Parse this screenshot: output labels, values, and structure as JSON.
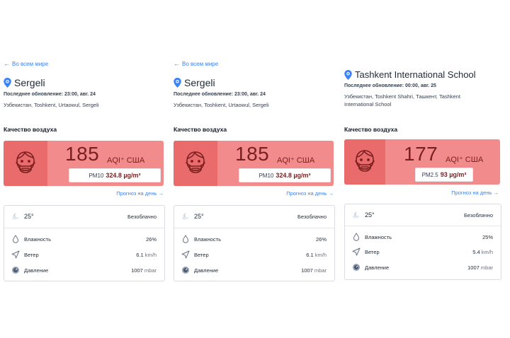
{
  "panels": [
    {
      "back_label": "Во всем мире",
      "location": "Sergeli",
      "updated": "Последнее обновление: 23:00, авг. 24",
      "address": "Узбекистан, Toshkent, Urtaowul, Sergeli",
      "aq_heading": "Качество воздуха",
      "aqi": "185",
      "aqi_unit": "AQI⁺ США",
      "pollutant": "PM10",
      "pollutant_value": "324.8 µg/m³",
      "forecast_label": "Прогноз на день",
      "weather": {
        "temp": "25°",
        "condition": "Безоблачно",
        "humidity_label": "Влажность",
        "humidity": "26%",
        "wind_label": "Ветер",
        "wind": "6.1",
        "wind_unit": "km/h",
        "pressure_label": "Давление",
        "pressure": "1007",
        "pressure_unit": "mbar"
      }
    },
    {
      "back_label": "Во всем мире",
      "location": "Sergeli",
      "updated": "Последнее обновление: 23:00, авг. 24",
      "address": "Узбекистан, Toshkent, Urtaowul, Sergeli",
      "aq_heading": "Качество воздуха",
      "aqi": "185",
      "aqi_unit": "AQI⁺ США",
      "pollutant": "PM10",
      "pollutant_value": "324.8 µg/m³",
      "forecast_label": "Прогноз на день",
      "weather": {
        "temp": "25°",
        "condition": "Безоблачно",
        "humidity_label": "Влажность",
        "humidity": "26%",
        "wind_label": "Ветер",
        "wind": "6.1",
        "wind_unit": "km/h",
        "pressure_label": "Давление",
        "pressure": "1007",
        "pressure_unit": "mbar"
      }
    },
    {
      "location": "Tashkent International School",
      "updated": "Последнее обновление: 00:00, авг. 25",
      "address": "Узбекистан, Toshkent Shahri, Ташкент, Tashkent International School",
      "aq_heading": "Качество воздуха",
      "aqi": "177",
      "aqi_unit": "AQI⁺ США",
      "pollutant": "PM2.5",
      "pollutant_value": "93 µg/m³",
      "forecast_label": "Прогноз на день",
      "weather": {
        "temp": "25°",
        "condition": "Безоблачно",
        "humidity_label": "Влажность",
        "humidity": "25%",
        "wind_label": "Ветер",
        "wind": "5.4",
        "wind_unit": "km/h",
        "pressure_label": "Давление",
        "pressure": "1007",
        "pressure_unit": "mbar"
      }
    }
  ],
  "colors": {
    "link": "#3b82f6",
    "aqi_card": "#f28b8b",
    "aqi_face_box": "#ea6b6b",
    "aqi_text": "#7a1f1f"
  },
  "icons": {
    "back": "arrow-left-icon",
    "location": "location-pin-icon",
    "face": "face-mask-icon",
    "forecast": "arrow-right-icon",
    "moon": "moon-cloud-icon",
    "humidity": "droplet-icon",
    "wind": "wind-arrow-icon",
    "pressure": "gauge-icon"
  }
}
